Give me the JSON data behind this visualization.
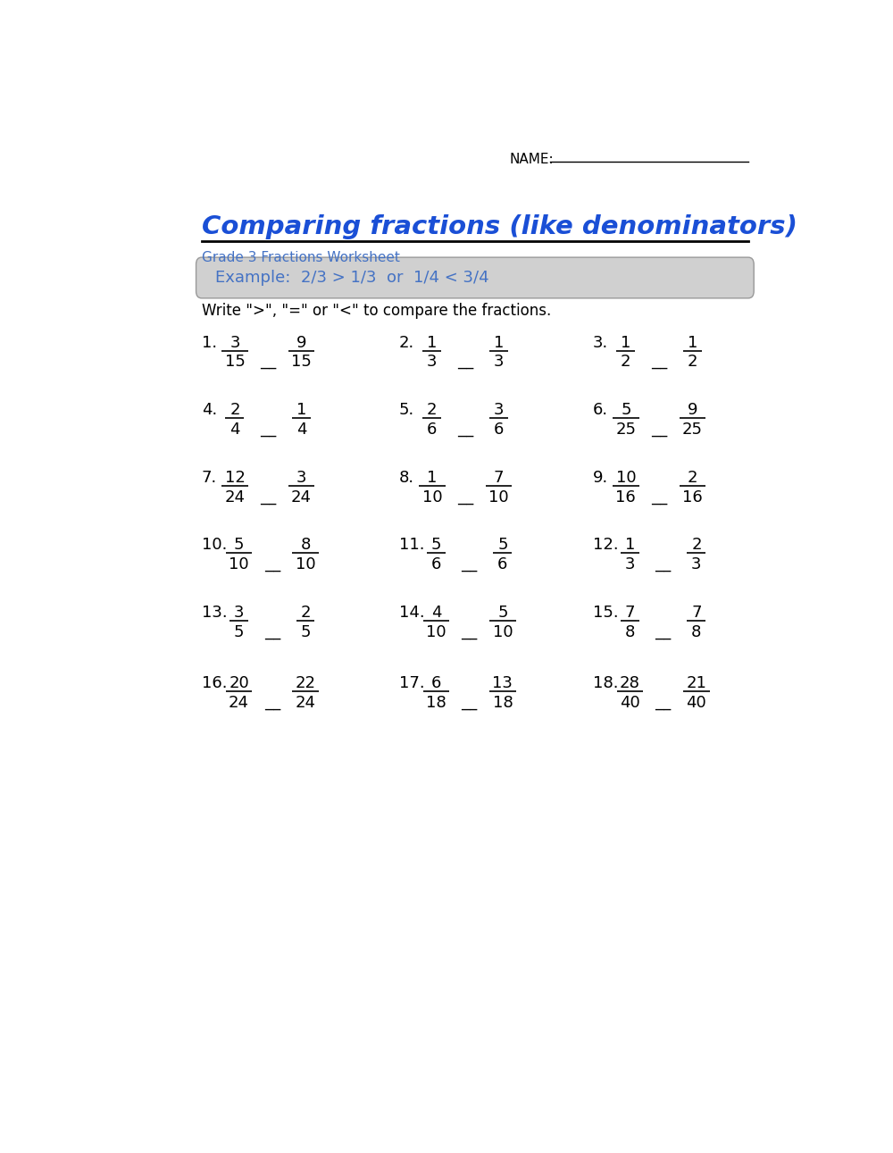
{
  "title": "Comparing fractions (like denominators)",
  "subtitle": "Grade 3 Fractions Worksheet",
  "example_text": "Example:  2/3 > 1/3  or  1/4 < 3/4",
  "instruction": "Write \">\", \"=\" or \"<\" to compare the fractions.",
  "name_label": "NAME:",
  "bg_color": "#ffffff",
  "title_color": "#1a4fd6",
  "subtitle_color": "#4472c4",
  "example_bg": "#d0d0d0",
  "example_text_color": "#4472c4",
  "instruction_color": "#000000",
  "fraction_color": "#000000",
  "problems": [
    {
      "num": "1.",
      "n1": "3",
      "d1": "15",
      "n2": "9",
      "d2": "15"
    },
    {
      "num": "2.",
      "n1": "1",
      "d1": "3",
      "n2": "1",
      "d2": "3"
    },
    {
      "num": "3.",
      "n1": "1",
      "d1": "2",
      "n2": "1",
      "d2": "2"
    },
    {
      "num": "4.",
      "n1": "2",
      "d1": "4",
      "n2": "1",
      "d2": "4"
    },
    {
      "num": "5.",
      "n1": "2",
      "d1": "6",
      "n2": "3",
      "d2": "6"
    },
    {
      "num": "6.",
      "n1": "5",
      "d1": "25",
      "n2": "9",
      "d2": "25"
    },
    {
      "num": "7.",
      "n1": "12",
      "d1": "24",
      "n2": "3",
      "d2": "24"
    },
    {
      "num": "8.",
      "n1": "1",
      "d1": "10",
      "n2": "7",
      "d2": "10"
    },
    {
      "num": "9.",
      "n1": "10",
      "d1": "16",
      "n2": "2",
      "d2": "16"
    },
    {
      "num": "10.",
      "n1": "5",
      "d1": "10",
      "n2": "8",
      "d2": "10"
    },
    {
      "num": "11.",
      "n1": "5",
      "d1": "6",
      "n2": "5",
      "d2": "6"
    },
    {
      "num": "12.",
      "n1": "1",
      "d1": "3",
      "n2": "2",
      "d2": "3"
    },
    {
      "num": "13.",
      "n1": "3",
      "d1": "5",
      "n2": "2",
      "d2": "5"
    },
    {
      "num": "14.",
      "n1": "4",
      "d1": "10",
      "n2": "5",
      "d2": "10"
    },
    {
      "num": "15.",
      "n1": "7",
      "d1": "8",
      "n2": "7",
      "d2": "8"
    },
    {
      "num": "16.",
      "n1": "20",
      "d1": "24",
      "n2": "22",
      "d2": "24"
    },
    {
      "num": "17.",
      "n1": "6",
      "d1": "18",
      "n2": "13",
      "d2": "18"
    },
    {
      "num": "18.",
      "n1": "28",
      "d1": "40",
      "n2": "21",
      "d2": "40"
    }
  ],
  "figsize": [
    10.0,
    12.91
  ]
}
